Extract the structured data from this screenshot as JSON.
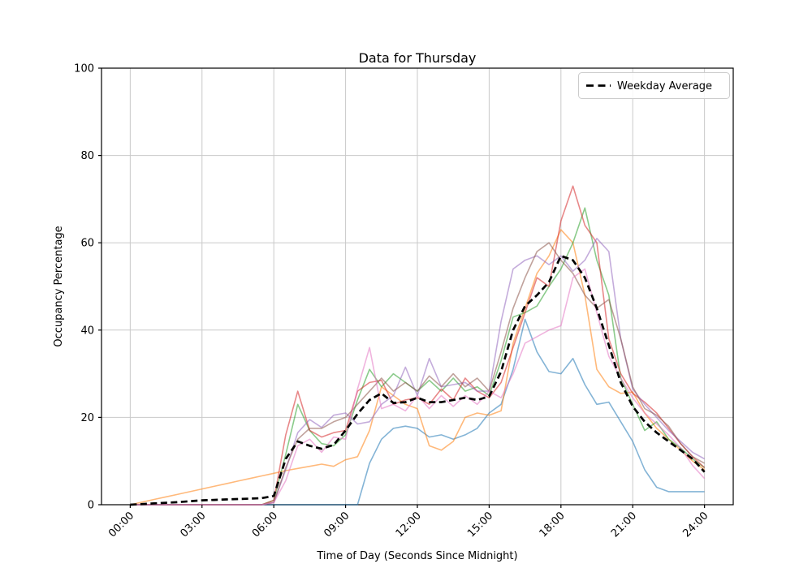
{
  "chart_data": {
    "type": "line",
    "title": "Data for Thursday",
    "xlabel": "Time of Day (Seconds Since Midnight)",
    "ylabel": "Occupancy Percentage",
    "legend": [
      "Weekday Average"
    ],
    "legend_position": "upper right",
    "grid": true,
    "ylim": [
      0,
      100
    ],
    "xlim_hours": [
      -1.2,
      25.2
    ],
    "y_ticks": [
      0,
      20,
      40,
      60,
      80,
      100
    ],
    "x_tick_hours": [
      0,
      3,
      6,
      9,
      12,
      15,
      18,
      21,
      24
    ],
    "x_tick_labels": [
      "00:00",
      "03:00",
      "06:00",
      "09:00",
      "12:00",
      "15:00",
      "18:00",
      "21:00",
      "24:00"
    ],
    "colors": {
      "grid": "#c9c9c9",
      "spine": "#000000",
      "legend_border": "#cccccc",
      "average_line": "#000000"
    },
    "x_hours": [
      0,
      0.5,
      1,
      1.5,
      2,
      2.5,
      3,
      3.5,
      4,
      4.5,
      5,
      5.5,
      6,
      6.5,
      7,
      7.5,
      8,
      8.5,
      9,
      9.5,
      10,
      10.5,
      11,
      11.5,
      12,
      12.5,
      13,
      13.5,
      14,
      14.5,
      15,
      15.5,
      16,
      16.5,
      17,
      17.5,
      18,
      18.5,
      19,
      19.5,
      20,
      20.5,
      21,
      21.5,
      22,
      22.5,
      23,
      23.5,
      24
    ],
    "series": [
      {
        "name": "series-1",
        "color": "#1f77b4",
        "opacity": 0.55,
        "values": [
          0,
          0,
          0,
          0,
          0,
          0,
          0,
          0,
          0,
          0,
          0,
          0,
          0,
          0,
          0,
          0,
          0,
          0,
          0,
          0,
          9.5,
          15,
          17.5,
          18,
          17.5,
          15.5,
          16,
          15,
          16,
          17.5,
          21,
          23,
          31,
          42.5,
          35,
          30.5,
          30,
          33.5,
          27.5,
          23,
          23.5,
          19,
          14.5,
          8,
          4,
          3,
          3,
          3,
          3
        ]
      },
      {
        "name": "series-2",
        "color": "#ff7f0e",
        "opacity": 0.55,
        "values": [
          0,
          0.6,
          1.2,
          1.8,
          2.4,
          3,
          3.6,
          4.2,
          4.8,
          5.4,
          6,
          6.6,
          7.2,
          7.8,
          8.3,
          8.8,
          9.3,
          8.8,
          10.3,
          11,
          17,
          27,
          25,
          23,
          22,
          13.5,
          12.5,
          14.5,
          20,
          21,
          20.5,
          21.5,
          37,
          45,
          53,
          57,
          63,
          60,
          48,
          31,
          27,
          25.5,
          25.8,
          21,
          17.5,
          15,
          12.5,
          10,
          8
        ]
      },
      {
        "name": "series-3",
        "color": "#2ca02c",
        "opacity": 0.55,
        "values": [
          0,
          0,
          0,
          0,
          0,
          0,
          0,
          0,
          0,
          0,
          0,
          0,
          1,
          11.5,
          23,
          17,
          14,
          13.5,
          16,
          24,
          31,
          27,
          30,
          28,
          26,
          28.5,
          26,
          29,
          26,
          27,
          25,
          33,
          43,
          44,
          45.5,
          50,
          54,
          60,
          68,
          56,
          48,
          29,
          23,
          17,
          19,
          15,
          13,
          10.5,
          8.5
        ]
      },
      {
        "name": "series-4",
        "color": "#d62728",
        "opacity": 0.55,
        "values": [
          0,
          0,
          0,
          0,
          0,
          0,
          0,
          0,
          0,
          0,
          0,
          0,
          1,
          16,
          26,
          17,
          15.5,
          16.5,
          17,
          26,
          28,
          28.5,
          23,
          24,
          24.5,
          23,
          26.5,
          24,
          29,
          26,
          24.5,
          28,
          36,
          44,
          52,
          50,
          65,
          73,
          64,
          60,
          38,
          30,
          25.5,
          23.5,
          21,
          17.5,
          14,
          11,
          8.5
        ]
      },
      {
        "name": "series-5",
        "color": "#9467bd",
        "opacity": 0.55,
        "values": [
          0,
          0,
          0,
          0,
          0,
          0,
          0,
          0,
          0,
          0,
          0,
          0,
          0.5,
          8,
          16.5,
          19.5,
          17.7,
          20.5,
          21,
          18.5,
          19,
          23,
          25,
          31.5,
          25,
          33.5,
          27,
          27.5,
          28,
          26,
          26,
          42,
          54,
          56,
          57,
          55,
          57,
          53.5,
          56,
          61,
          58,
          38,
          26.5,
          23,
          20,
          17,
          14.5,
          12,
          10.5
        ]
      },
      {
        "name": "series-6",
        "color": "#8c564b",
        "opacity": 0.55,
        "values": [
          0,
          0,
          0,
          0,
          0,
          0,
          0,
          0,
          0,
          0,
          0,
          0,
          0.5,
          8.5,
          15,
          17.5,
          17.5,
          19,
          20,
          23,
          26,
          29,
          26,
          28,
          26,
          29.5,
          27,
          30,
          27,
          29,
          26,
          35,
          45,
          52,
          58,
          60,
          56,
          53,
          48,
          45,
          47,
          38,
          27,
          22,
          20.5,
          18,
          14,
          11,
          9.5
        ]
      },
      {
        "name": "series-7",
        "color": "#e377c2",
        "opacity": 0.55,
        "values": [
          0,
          0,
          0,
          0,
          0,
          0,
          0,
          0,
          0,
          0,
          0,
          0,
          0.5,
          5.5,
          13.5,
          15,
          12,
          15.5,
          15,
          26.5,
          36,
          22,
          23,
          21.5,
          25,
          22,
          25,
          22.5,
          25,
          23,
          26,
          24.5,
          30,
          37,
          38.5,
          40,
          41,
          52,
          54,
          44,
          34,
          29,
          24.5,
          21,
          18.5,
          16,
          13,
          9,
          6
        ]
      }
    ],
    "average_series": {
      "name": "Weekday Average",
      "color": "#000000",
      "dashed": true,
      "values": [
        0,
        0.15,
        0.3,
        0.45,
        0.6,
        0.8,
        1,
        1.1,
        1.2,
        1.3,
        1.4,
        1.5,
        2,
        10.5,
        14.5,
        13.5,
        12.8,
        13.7,
        17,
        20.8,
        24,
        25.5,
        23.3,
        23.5,
        24.5,
        23.5,
        23.5,
        24,
        24.5,
        24,
        24.8,
        30.5,
        40,
        45.5,
        48,
        51,
        57,
        56,
        52,
        45,
        36.5,
        28,
        22.5,
        19,
        16.5,
        14.5,
        12.5,
        10.5,
        7.5
      ]
    }
  }
}
